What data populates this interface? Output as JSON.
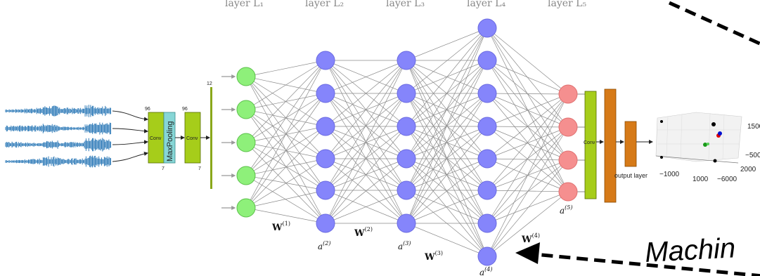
{
  "layer_headers": [
    "layer L₁",
    "layer L₂",
    "layer L₃",
    "layer L₄",
    "layer L₅"
  ],
  "weights": [
    "W",
    "W",
    "W",
    "W"
  ],
  "weight_sups": [
    "(1)",
    "(2)",
    "(3)",
    "(4)"
  ],
  "activations": [
    "a",
    "a",
    "a",
    "a"
  ],
  "activation_sups": [
    "(2)",
    "(3)",
    "(4)",
    "(5)"
  ],
  "cnn": {
    "conv1_label": "Conv",
    "pool_label": "MaxPooling",
    "conv2_label": "Conv",
    "conv3_label": "Conv",
    "output_label": "output layer",
    "dim_top_1": "96",
    "dim_top_2": "96",
    "dim_bottom_1": "7",
    "dim_bottom_2": "7",
    "dim_top_3": "12"
  },
  "plot3d": {
    "tick_1500": "1500",
    "tick_neg500": "−500",
    "tick_2000": "2000",
    "tick_neg1000": "−1000",
    "tick_1000": "1000",
    "tick_neg6000": "−6000"
  },
  "annotation": "Machin",
  "colors": {
    "input_node": "#8ef07a",
    "hidden_node": "#8585fb",
    "output_node": "#f58f8f",
    "conv_green": "#a6cd1a",
    "pool_teal": "#87d6d6",
    "dense_orange": "#d67a18",
    "waveform_blue": "#2f7bb8"
  }
}
